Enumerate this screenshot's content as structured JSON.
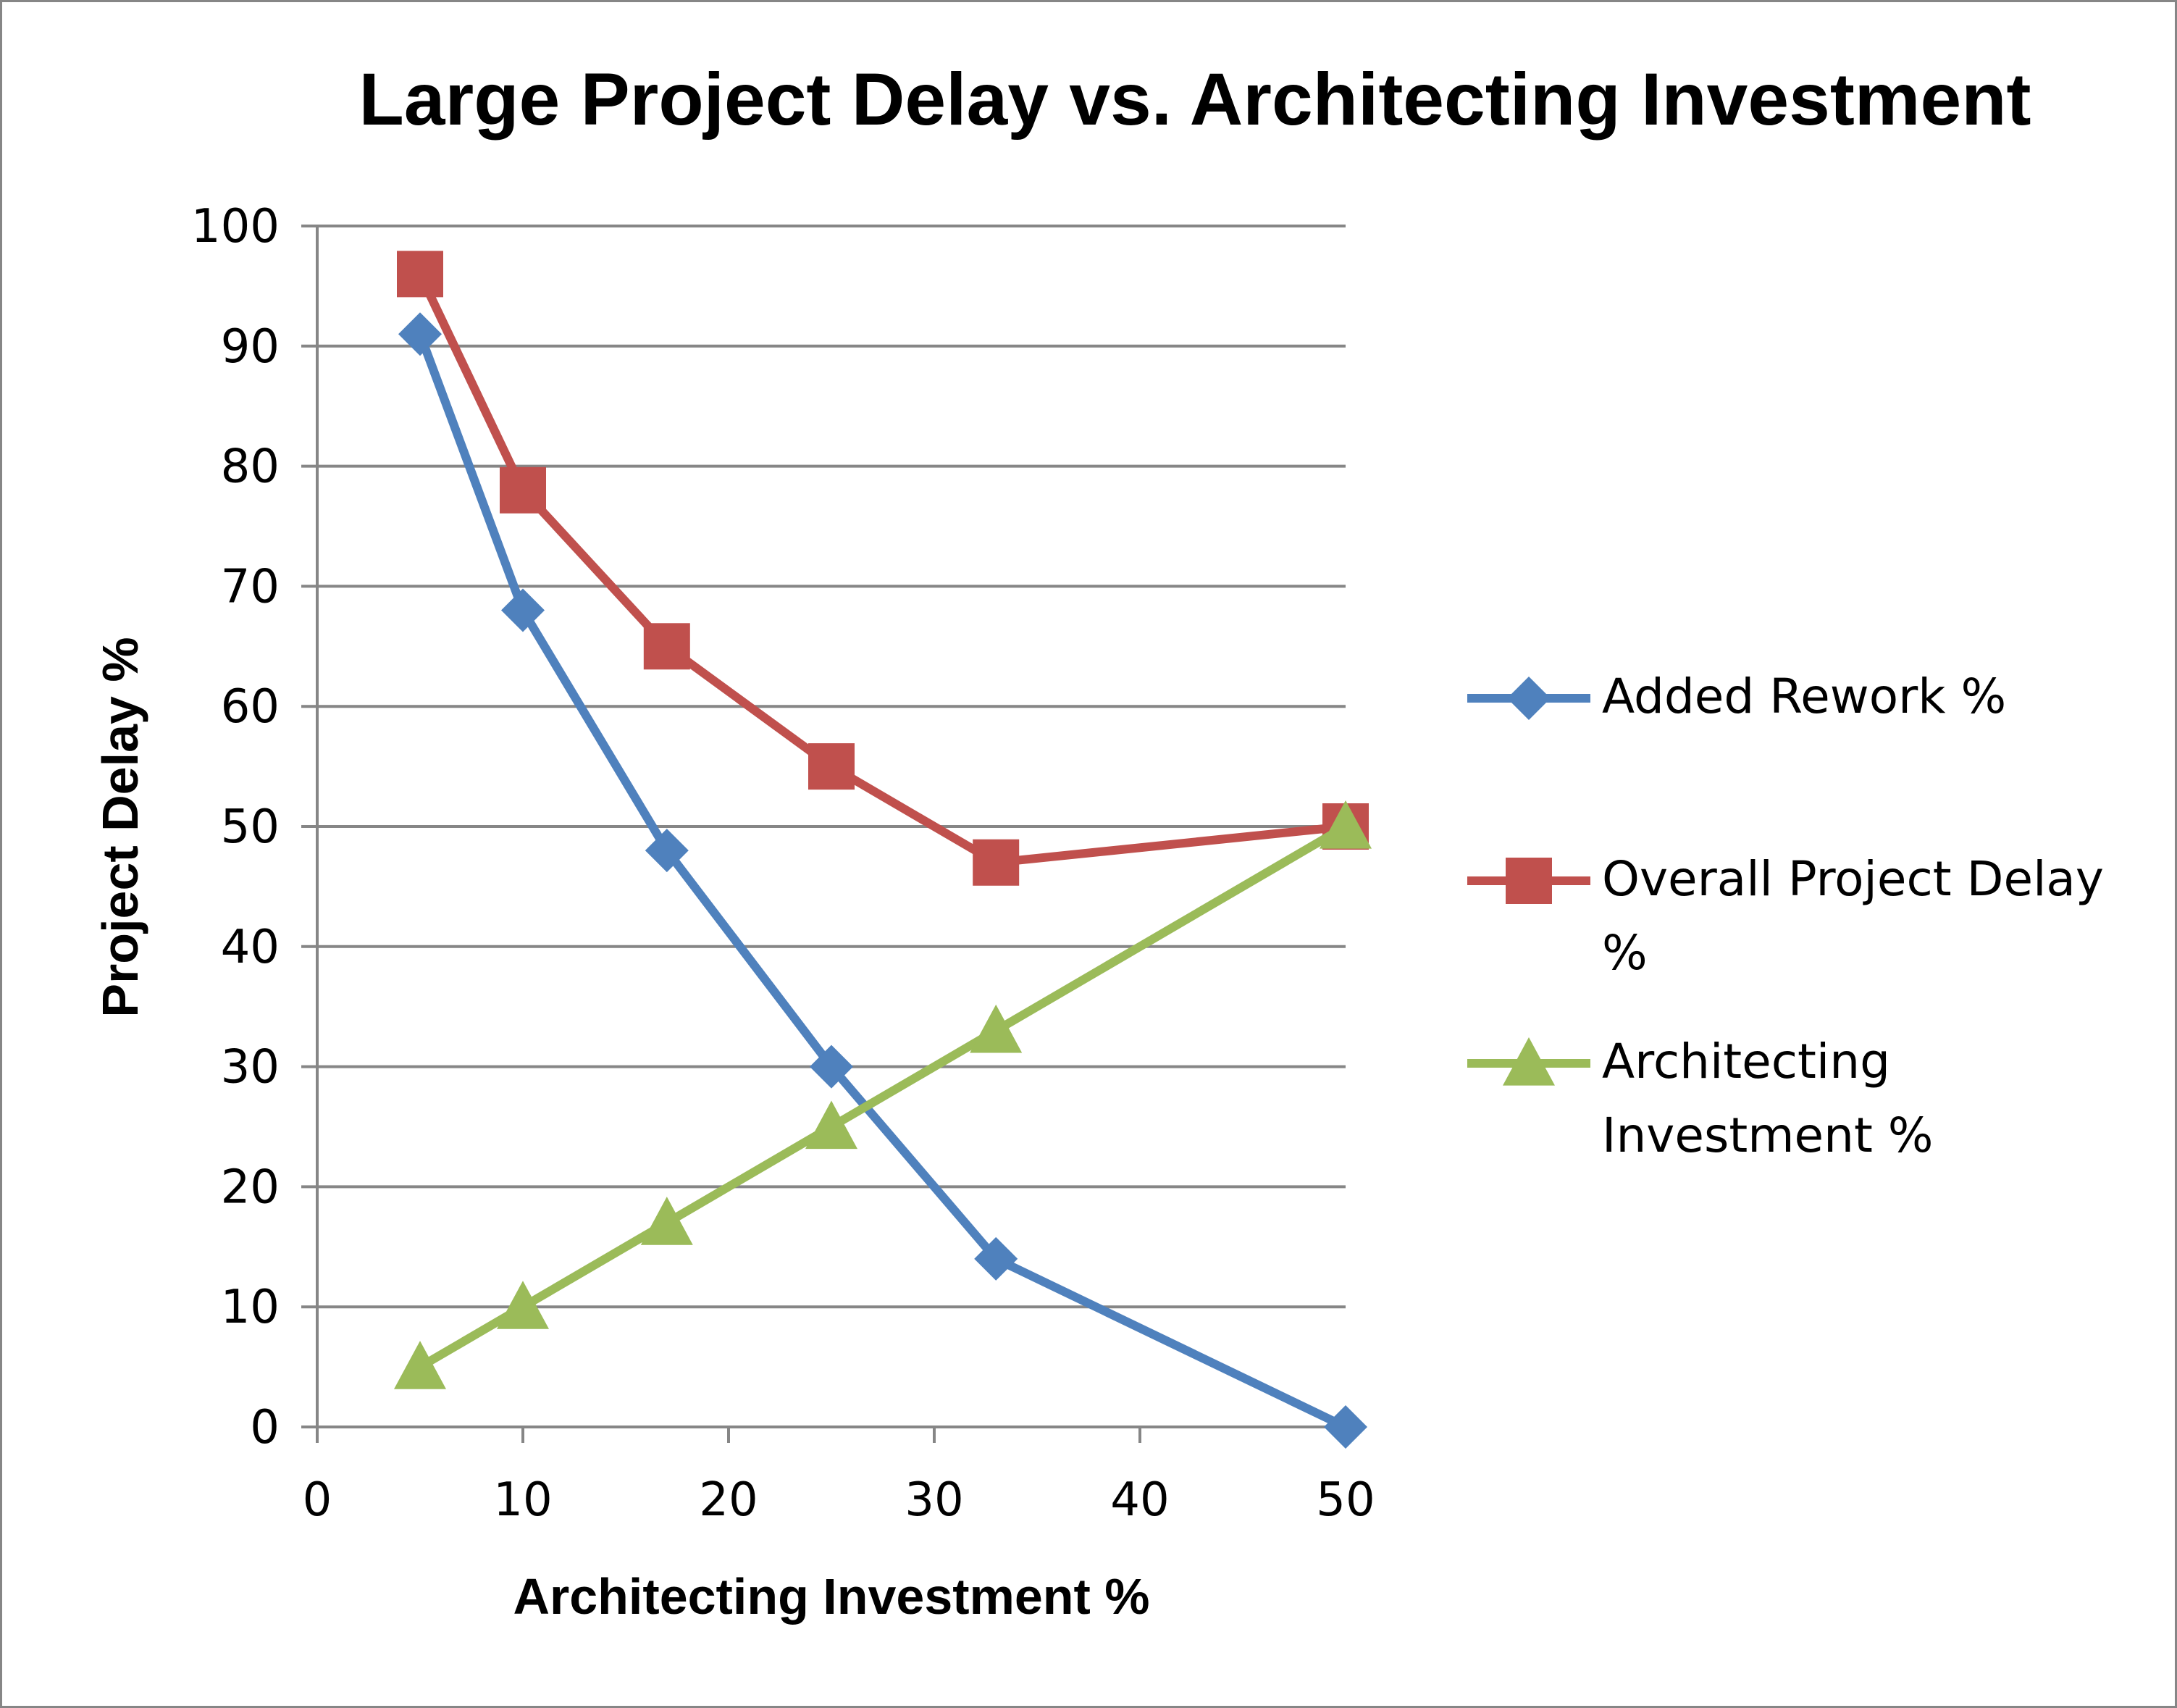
{
  "chart_data": {
    "type": "line",
    "title": "Large Project Delay vs. Architecting Investment",
    "xlabel": "Architecting Investment %",
    "ylabel": "Project Delay %",
    "xlim": [
      0,
      50
    ],
    "ylim": [
      0,
      100
    ],
    "xticks": [
      0,
      10,
      20,
      30,
      40,
      50
    ],
    "yticks": [
      0,
      10,
      20,
      30,
      40,
      50,
      60,
      70,
      80,
      90,
      100
    ],
    "grid": "horizontal",
    "legend_position": "right",
    "x": [
      5,
      10,
      17,
      25,
      33,
      50
    ],
    "series": [
      {
        "name": "Added Rework %",
        "color": "#4F81BD",
        "marker": "diamond",
        "values": [
          91,
          68,
          48,
          30,
          14,
          0
        ],
        "legend_lines": [
          "Added Rework %"
        ]
      },
      {
        "name": "Overall Project Delay %",
        "color": "#C0504D",
        "marker": "square",
        "values": [
          96,
          78,
          65,
          55,
          47,
          50
        ],
        "legend_lines": [
          "Overall Project Delay",
          "%"
        ]
      },
      {
        "name": "Architecting Investment %",
        "color": "#9BBB59",
        "marker": "triangle",
        "values": [
          5,
          10,
          17,
          25,
          33,
          50
        ],
        "legend_lines": [
          "Architecting",
          "Investment %"
        ]
      }
    ]
  }
}
